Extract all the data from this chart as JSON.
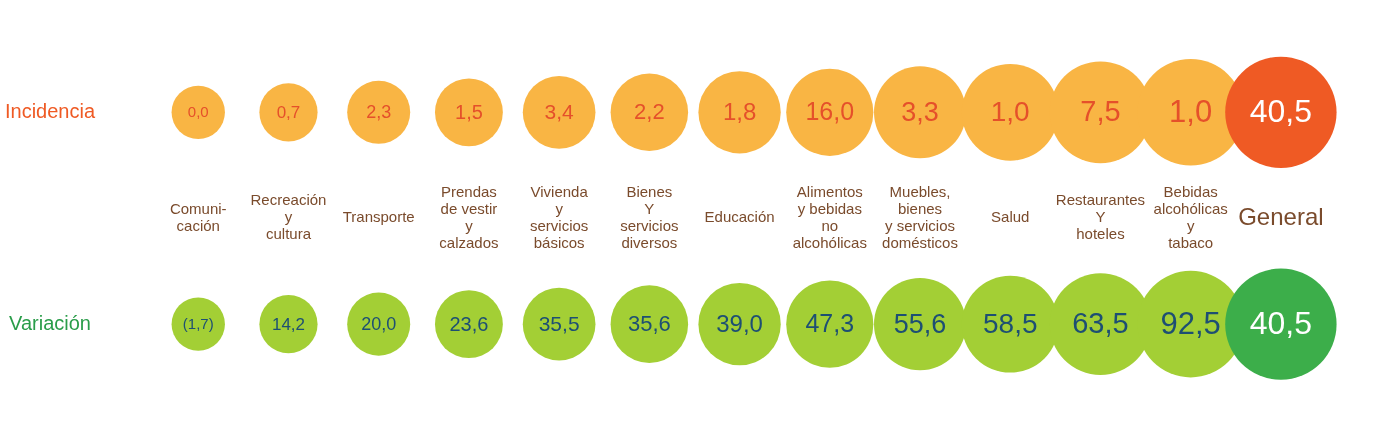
{
  "chart_data": {
    "type": "other",
    "categories": [
      "Comuni-\ncación",
      "Recreación\ny\ncultura",
      "Transporte",
      "Prendas\nde vestir\ny\ncalzados",
      "Vivienda\ny\nservicios\nbásicos",
      "Bienes\nY\nservicios\ndiversos",
      "Educación",
      "Alimentos\ny bebidas\nno\nalcohólicas",
      "Muebles,\nbienes\ny servicios\ndomésticos",
      "Salud",
      "Restaurantes\nY\nhoteles",
      "Bebidas\nalcohólicas\ny\ntabaco",
      "General"
    ],
    "series": [
      {
        "name": "Incidencia",
        "color": "#ef5a24",
        "colors": [
          "#f9b544",
          "#f9b544",
          "#f9b544",
          "#f9b544",
          "#f9b544",
          "#f9b544",
          "#f9b544",
          "#f9b544",
          "#f9b544",
          "#f9b544",
          "#f9b544",
          "#f9b544",
          "#ef5a24"
        ],
        "values": [
          0.0,
          0.7,
          2.3,
          1.5,
          3.4,
          2.2,
          1.8,
          16.0,
          3.3,
          1.0,
          7.5,
          1.0,
          40.5
        ],
        "value_labels": [
          "0,0",
          "0,7",
          "2,3",
          "1,5",
          "3,4",
          "2,2",
          "1,8",
          "16,0",
          "3,3",
          "1,0",
          "7,5",
          "1,0",
          "40,5"
        ]
      },
      {
        "name": "Variación",
        "color": "#2a9d4a",
        "colors": [
          "#a3cf35",
          "#a3cf35",
          "#a3cf35",
          "#a3cf35",
          "#a3cf35",
          "#a3cf35",
          "#a3cf35",
          "#a3cf35",
          "#a3cf35",
          "#a3cf35",
          "#a3cf35",
          "#a3cf35",
          "#3cae4a"
        ],
        "values": [
          -1.7,
          14.2,
          20.0,
          23.6,
          35.5,
          35.6,
          39.0,
          47.3,
          55.6,
          58.5,
          63.5,
          92.5,
          40.5
        ],
        "value_labels": [
          "(1,7)",
          "14,2",
          "20,0",
          "23,6",
          "35,5",
          "35,6",
          "39,0",
          "47,3",
          "55,6",
          "58,5",
          "63,5",
          "92,5",
          "40,5"
        ]
      }
    ]
  }
}
